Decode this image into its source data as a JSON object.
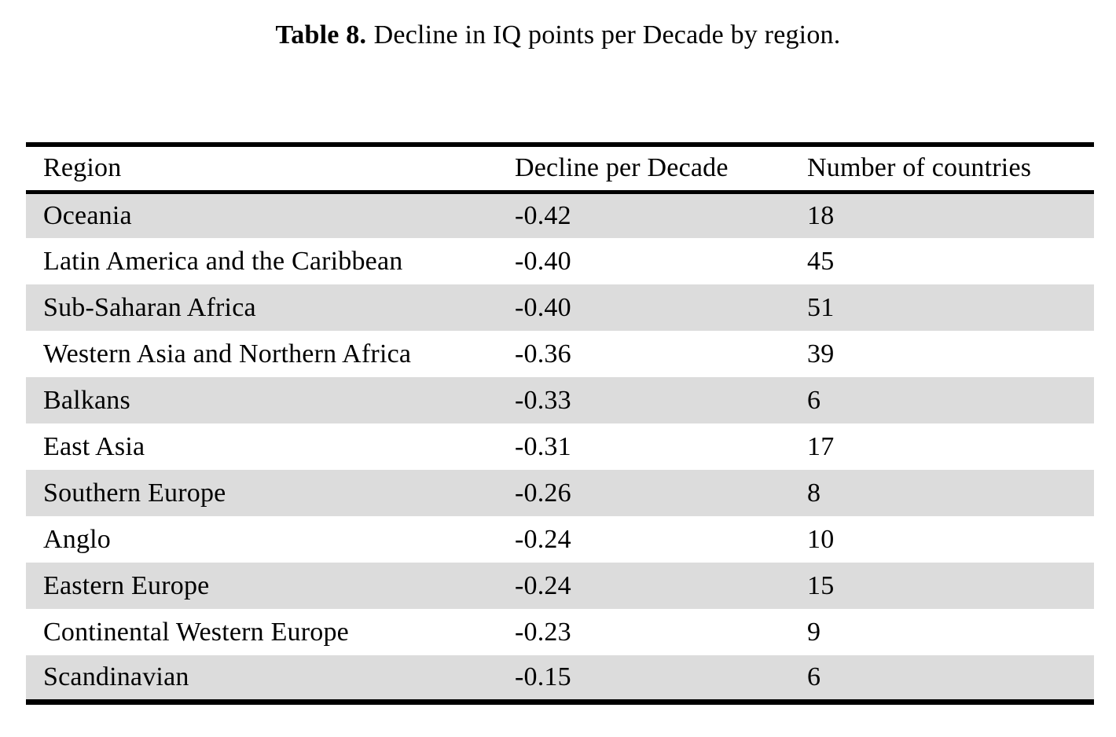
{
  "caption": {
    "label": "Table 8.",
    "text": "Decline in IQ points per Decade by region."
  },
  "table": {
    "stripe_color": "#dcdcdc",
    "columns": [
      "Region",
      "Decline per Decade",
      "Number of countries"
    ],
    "rows": [
      {
        "region": "Oceania",
        "decline": "-0.42",
        "countries": "18"
      },
      {
        "region": "Latin America and the Caribbean",
        "decline": "-0.40",
        "countries": "45"
      },
      {
        "region": "Sub-Saharan Africa",
        "decline": "-0.40",
        "countries": "51"
      },
      {
        "region": "Western Asia and Northern Africa",
        "decline": "-0.36",
        "countries": "39"
      },
      {
        "region": "Balkans",
        "decline": "-0.33",
        "countries": "6"
      },
      {
        "region": "East Asia",
        "decline": "-0.31",
        "countries": "17"
      },
      {
        "region": "Southern Europe",
        "decline": "-0.26",
        "countries": "8"
      },
      {
        "region": "Anglo",
        "decline": "-0.24",
        "countries": "10"
      },
      {
        "region": "Eastern Europe",
        "decline": "-0.24",
        "countries": "15"
      },
      {
        "region": "Continental Western Europe",
        "decline": "-0.23",
        "countries": "9"
      },
      {
        "region": "Scandinavian",
        "decline": "-0.15",
        "countries": "6"
      }
    ]
  }
}
